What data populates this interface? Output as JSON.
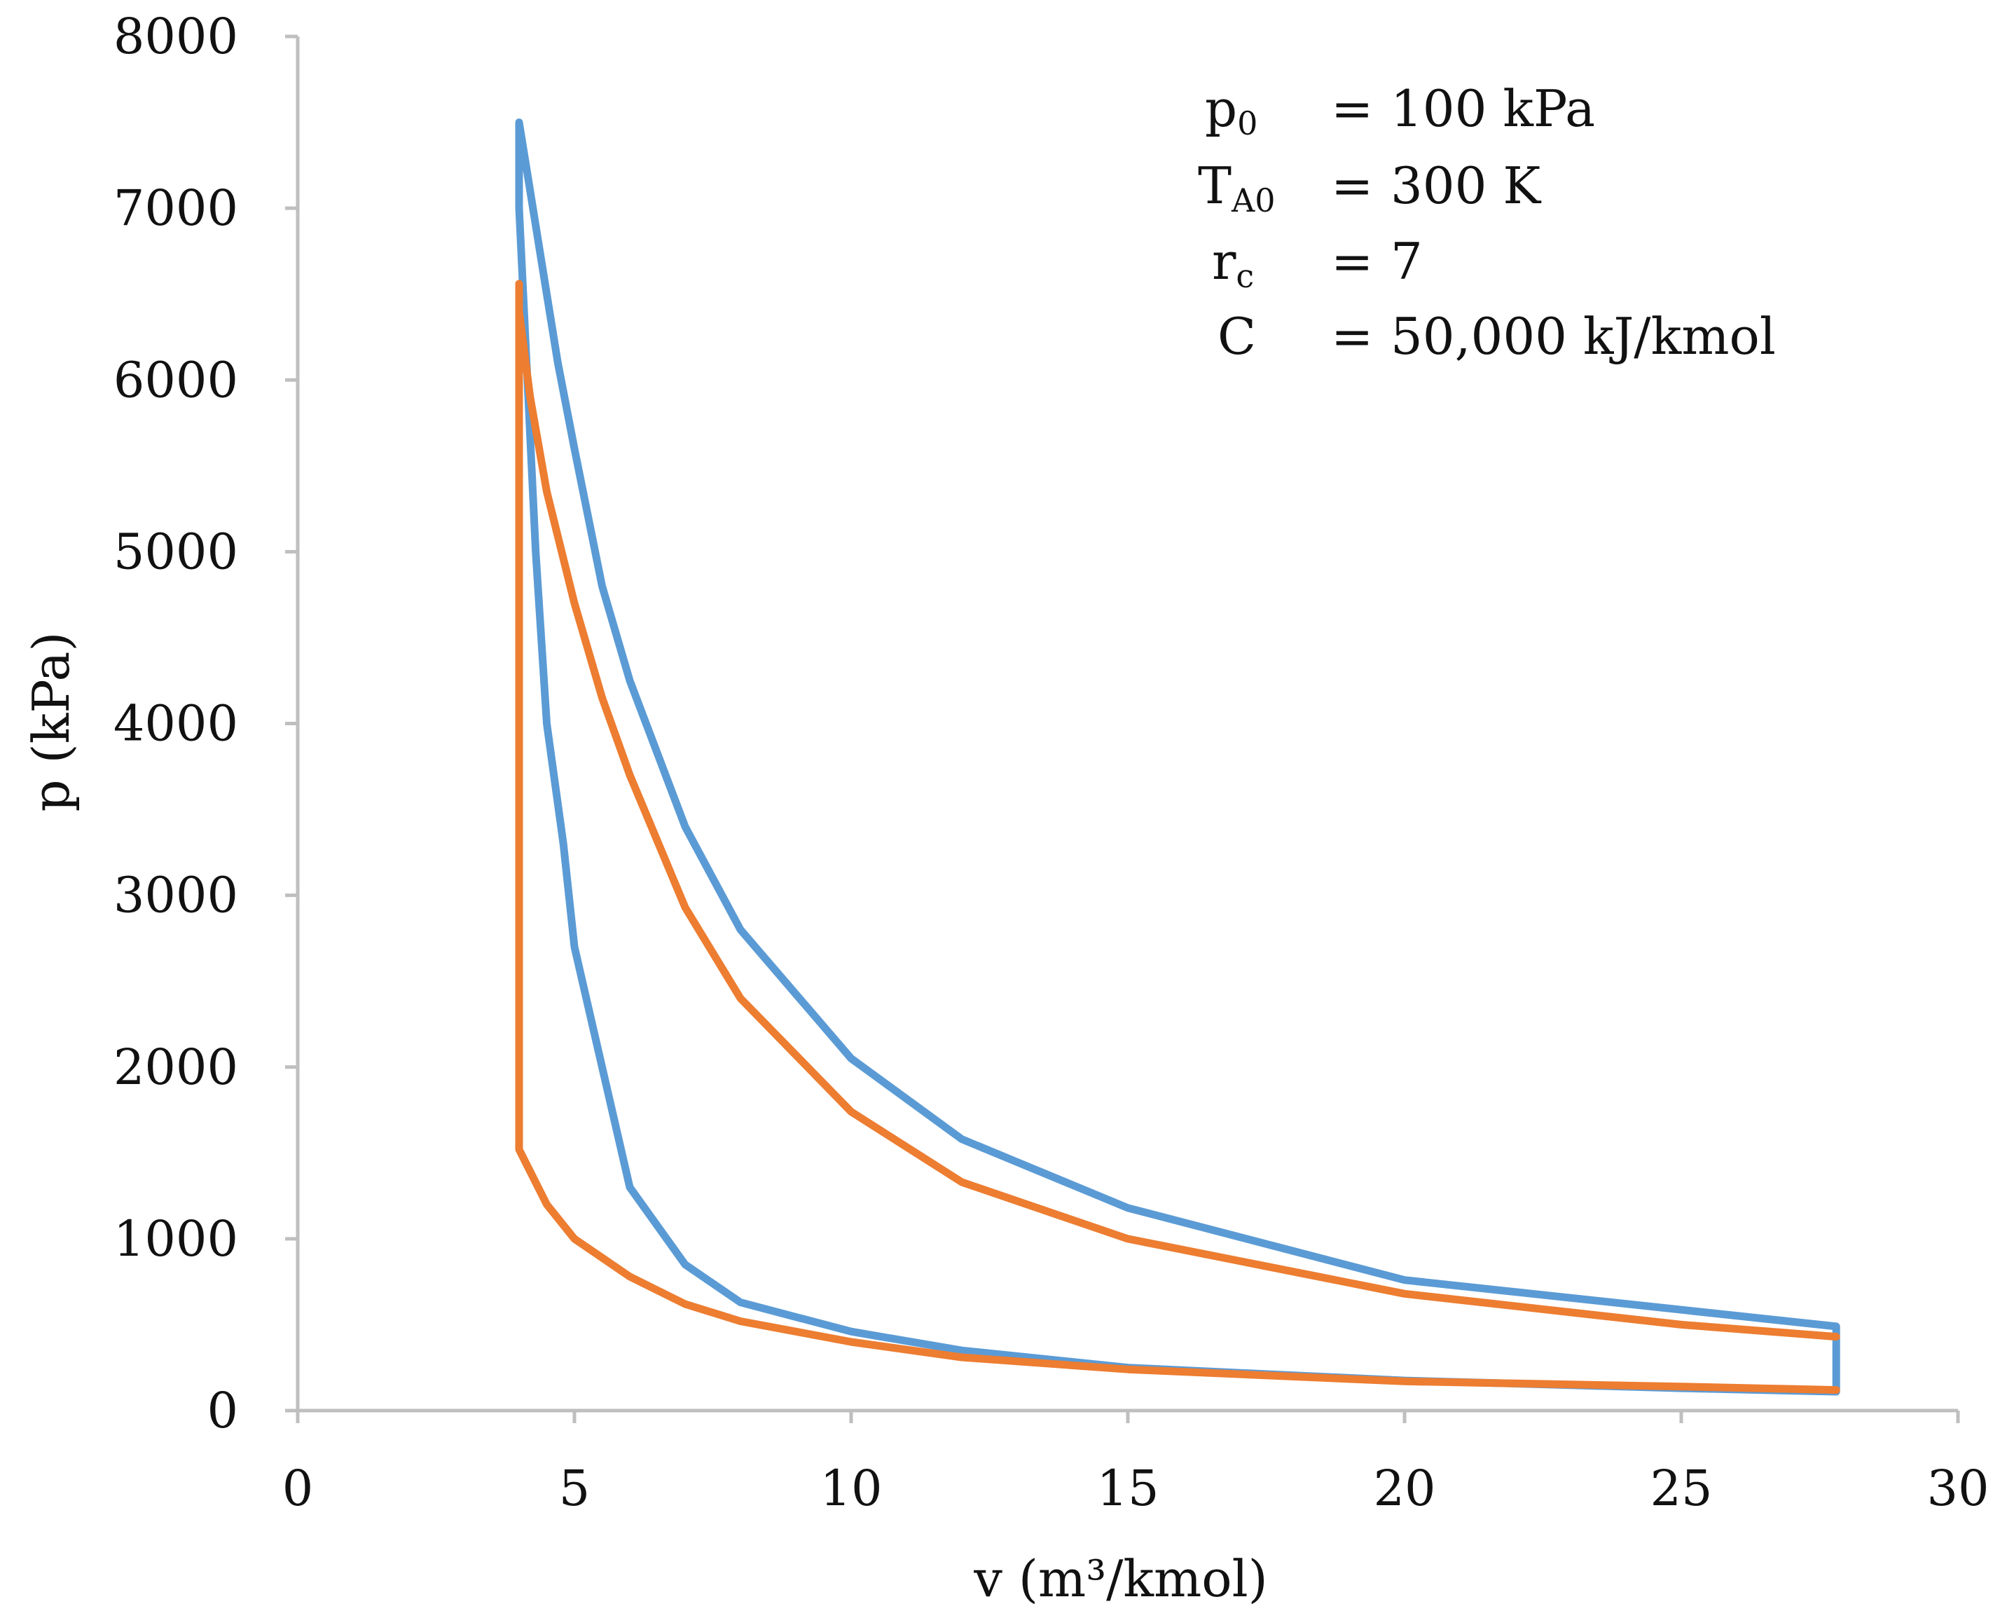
{
  "chart_data": {
    "type": "line",
    "title": "",
    "xlabel": "v (m³/kmol)",
    "ylabel": "p (kPa)",
    "xlim": [
      0,
      30
    ],
    "ylim": [
      0,
      8000
    ],
    "xticks": [
      "0",
      "5",
      "10",
      "15",
      "20",
      "25",
      "30"
    ],
    "yticks": [
      "0",
      "1000",
      "2000",
      "3000",
      "4000",
      "5000",
      "6000",
      "7000",
      "8000"
    ],
    "grid": false,
    "series": [
      {
        "name": "blue-cycle",
        "color": "#5B9BD5",
        "x": [
          27.8,
          27.8,
          20,
          15,
          12,
          10,
          8,
          7,
          6,
          5.5,
          5,
          4.7,
          4.5,
          4.3,
          4.15,
          4.0,
          4.0,
          4.15,
          4.3,
          4.5,
          4.8,
          5.0,
          5.5,
          6.0,
          7.0,
          8.0,
          10.0,
          12.0,
          15.0,
          20.0,
          25.0,
          27.8
        ],
        "y": [
          110,
          490,
          760,
          1180,
          1580,
          2050,
          2800,
          3400,
          4250,
          4800,
          5600,
          6100,
          6500,
          6900,
          7200,
          7500,
          7000,
          6000,
          5000,
          4000,
          3300,
          2700,
          2000,
          1300,
          850,
          630,
          460,
          350,
          250,
          175,
          130,
          110
        ]
      },
      {
        "name": "orange-cycle",
        "color": "#ED7D31",
        "x": [
          27.8,
          25,
          20,
          15,
          12,
          10,
          8,
          7,
          6,
          5.5,
          5,
          4.5,
          4.2,
          4.0,
          4.0,
          4.0,
          4.5,
          5.0,
          6.0,
          7.0,
          8.0,
          10.0,
          12.0,
          15.0,
          20.0,
          25.0,
          27.8
        ],
        "y": [
          430,
          500,
          680,
          1000,
          1330,
          1740,
          2400,
          2930,
          3700,
          4150,
          4700,
          5350,
          5900,
          6400,
          6560,
          1520,
          1200,
          1000,
          780,
          620,
          520,
          400,
          310,
          240,
          170,
          140,
          120
        ]
      }
    ],
    "annotations": [
      {
        "symbol": "p",
        "sub": "0",
        "eq": "=",
        "value": "100 kPa"
      },
      {
        "symbol": "T",
        "sub": "A0",
        "eq": "=",
        "value": "300 K"
      },
      {
        "symbol": "r",
        "sub": "c",
        "eq": "=",
        "value": "7"
      },
      {
        "symbol": "C",
        "sub": "",
        "eq": "=",
        "value": "50,000 kJ/kmol"
      }
    ]
  }
}
